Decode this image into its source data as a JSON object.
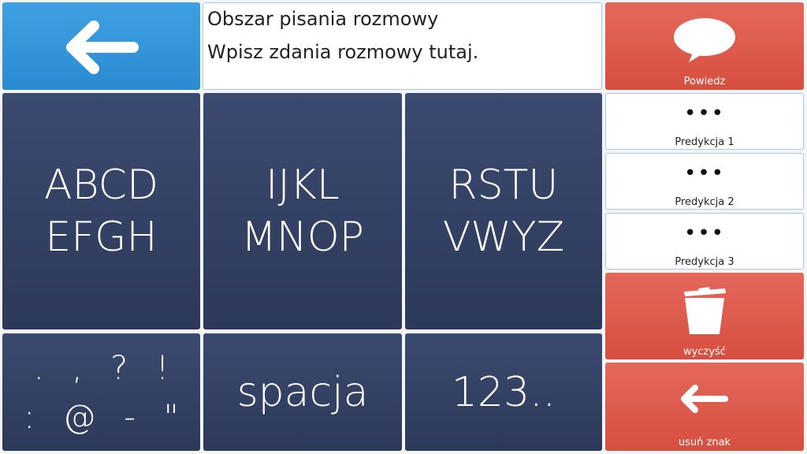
{
  "text_area": {
    "lines": [
      "Obszar pisania rozmowy",
      "Wpisz zdania rozmowy tutaj."
    ]
  },
  "side": {
    "speak": "Powiedz",
    "predictions": [
      {
        "symbol": "•••",
        "label": "Predykcja 1"
      },
      {
        "symbol": "•••",
        "label": "Predykcja 2"
      },
      {
        "symbol": "•••",
        "label": "Predykcja 3"
      }
    ],
    "clear": "wyczyść",
    "delete": "usuń znak"
  },
  "keys": [
    {
      "lines": [
        "ABCD",
        "EFGH"
      ]
    },
    {
      "lines": [
        "IJKL",
        "MNOP"
      ]
    },
    {
      "lines": [
        "RSTU",
        "VWYZ"
      ]
    },
    {
      "lines": [
        ". , ? !",
        ": @ - \""
      ]
    },
    {
      "lines": [
        "spacja"
      ]
    },
    {
      "lines": [
        "123.."
      ]
    }
  ]
}
